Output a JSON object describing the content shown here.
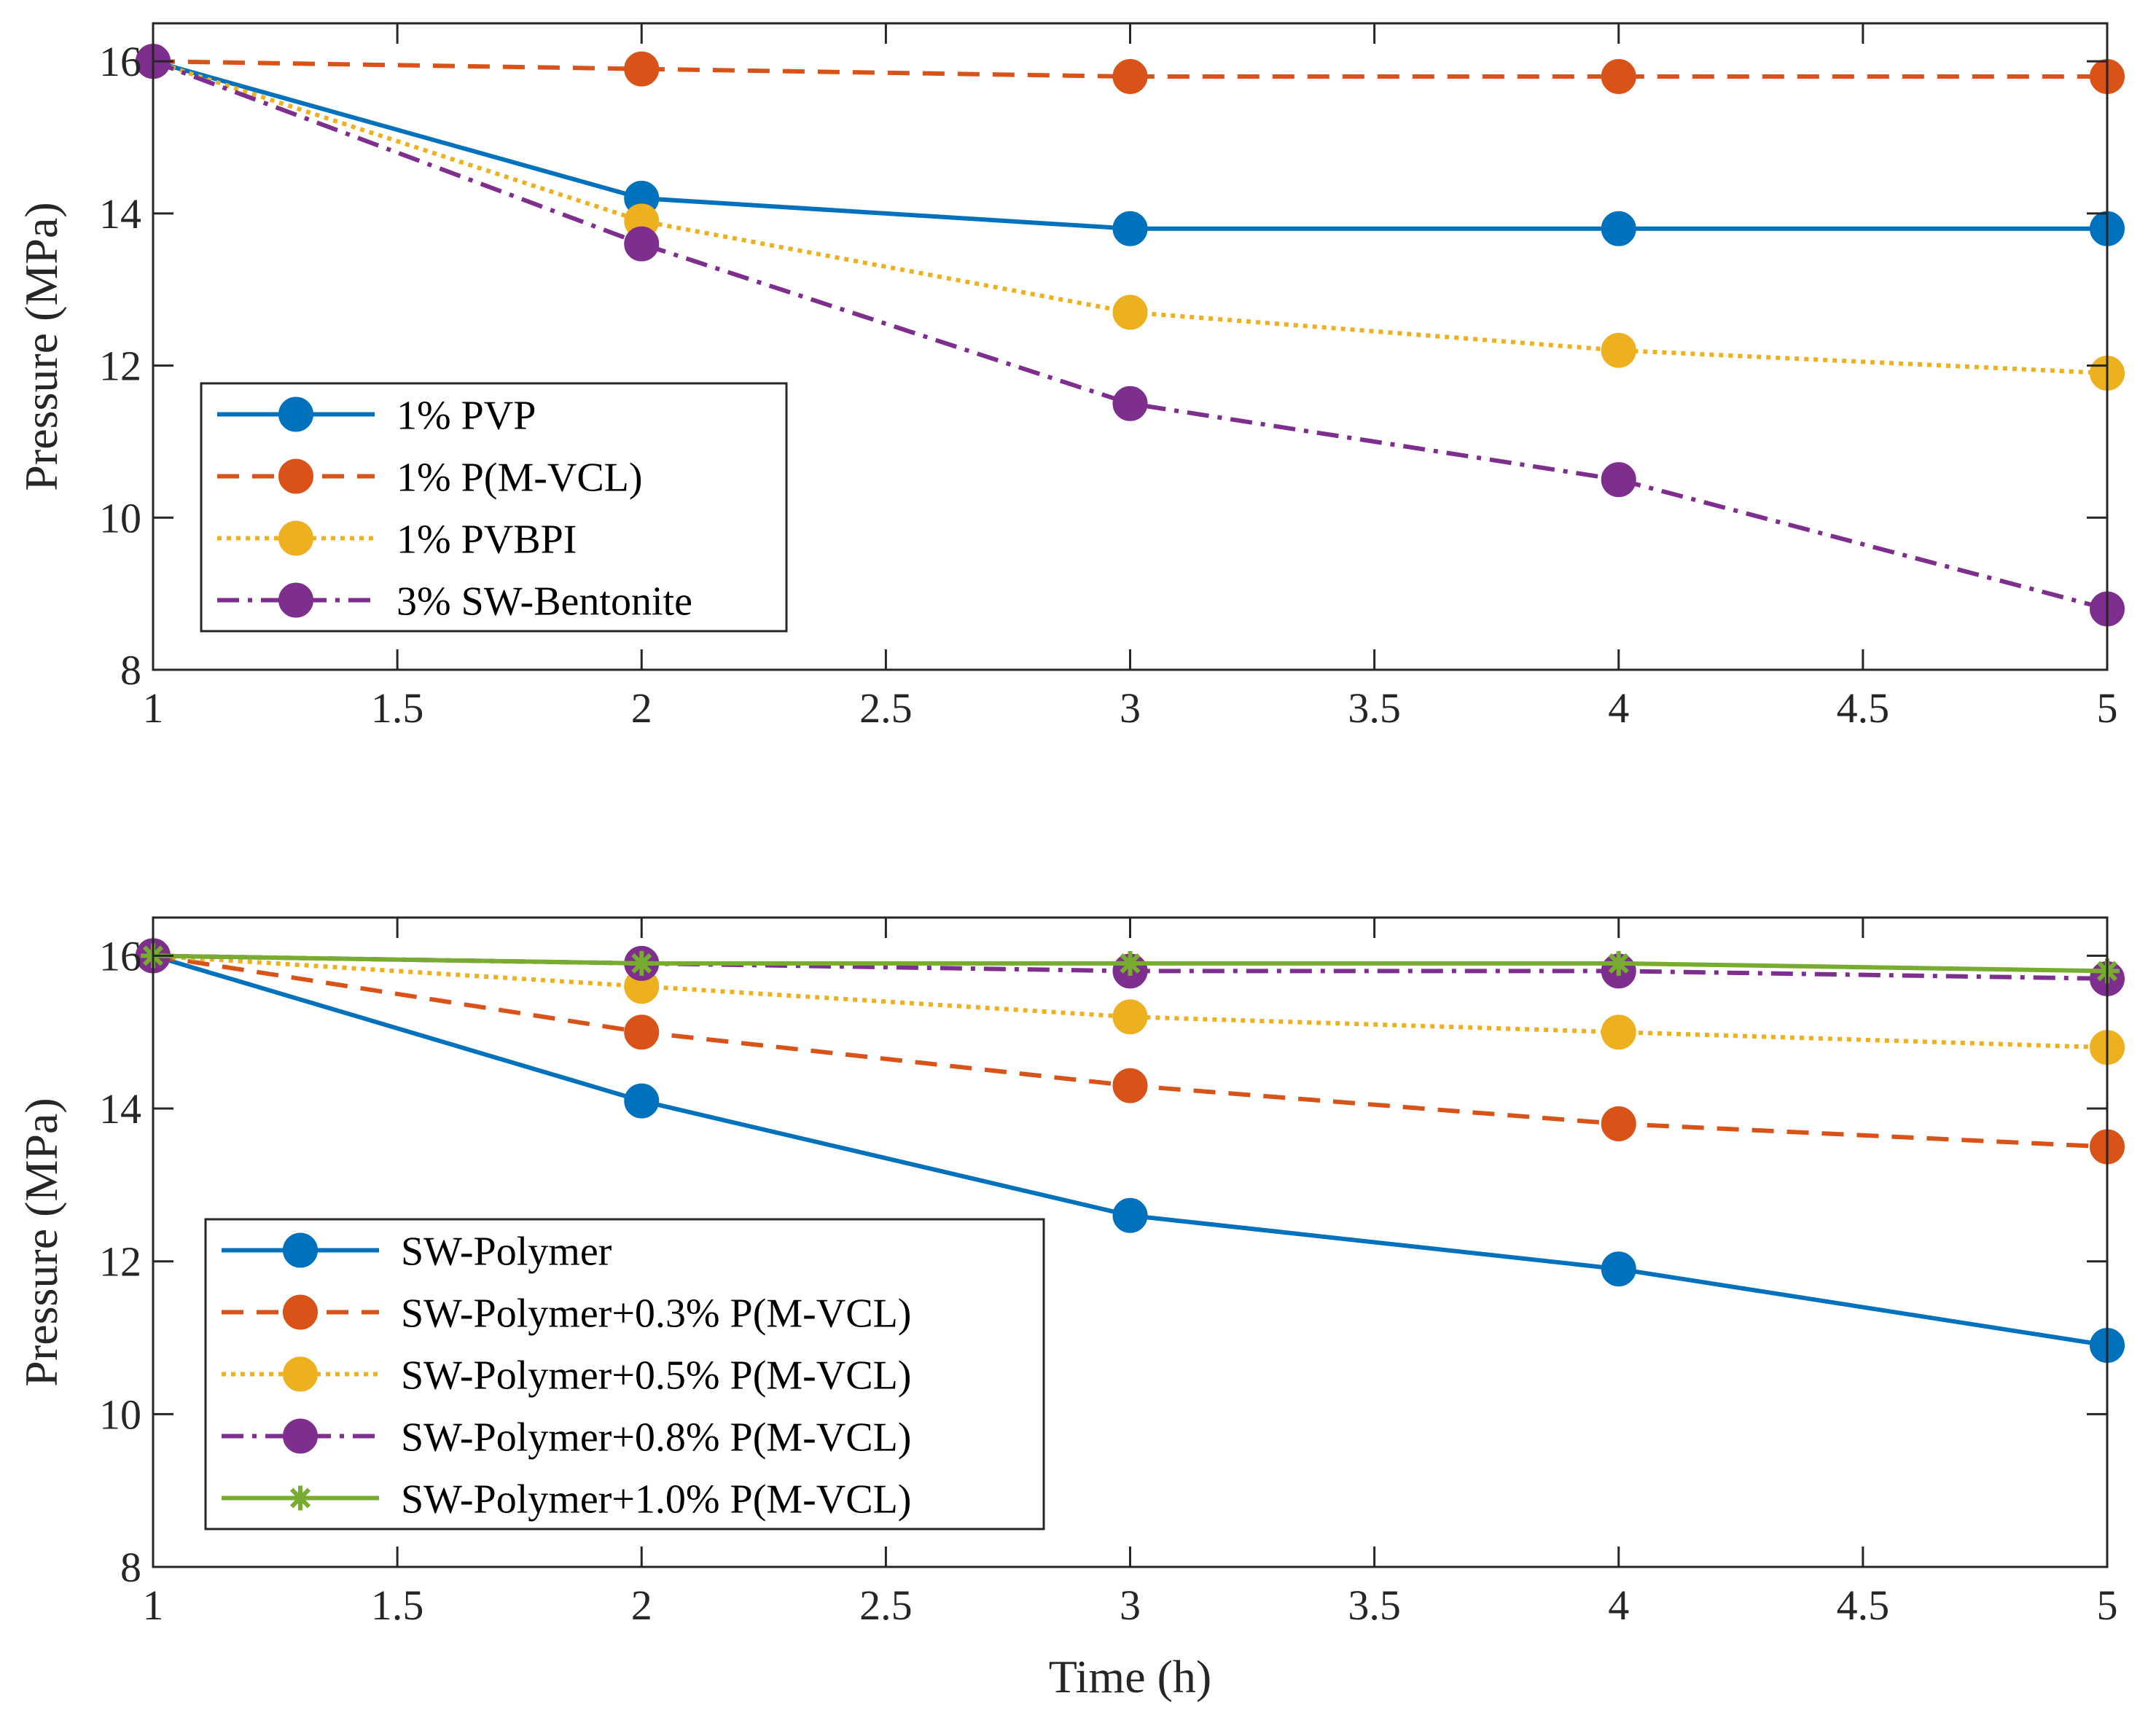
{
  "chart_data": [
    {
      "type": "line",
      "title": "",
      "xlabel": "",
      "ylabel": "Pressure (MPa)",
      "xlim": [
        1,
        5
      ],
      "ylim": [
        8,
        16.5
      ],
      "xticks": [
        "1",
        "1.5",
        "2",
        "2.5",
        "3",
        "3.5",
        "4",
        "4.5",
        "5"
      ],
      "yticks": [
        "8",
        "10",
        "12",
        "14",
        "16"
      ],
      "grid": false,
      "legend_position": "lower-left",
      "x": [
        1,
        2,
        3,
        4,
        5
      ],
      "series": [
        {
          "name": "1% PVP",
          "values": [
            16,
            14.2,
            13.8,
            13.8,
            13.8
          ],
          "color": "#0072BD",
          "dash": "solid",
          "marker": "circle"
        },
        {
          "name": "1% P(M-VCL)",
          "values": [
            16,
            15.9,
            15.8,
            15.8,
            15.8
          ],
          "color": "#D95319",
          "dash": "dashed",
          "marker": "circle"
        },
        {
          "name": "1% PVBPI",
          "values": [
            16,
            13.9,
            12.7,
            12.2,
            11.9
          ],
          "color": "#EDB120",
          "dash": "dotted",
          "marker": "circle"
        },
        {
          "name": "3% SW-Bentonite",
          "values": [
            16,
            13.6,
            11.5,
            10.5,
            8.8
          ],
          "color": "#7E2F8E",
          "dash": "dashdot",
          "marker": "circle"
        }
      ]
    },
    {
      "type": "line",
      "title": "",
      "xlabel": "Time (h)",
      "ylabel": "Pressure (MPa)",
      "xlim": [
        1,
        5
      ],
      "ylim": [
        8,
        16.5
      ],
      "xticks": [
        "1",
        "1.5",
        "2",
        "2.5",
        "3",
        "3.5",
        "4",
        "4.5",
        "5"
      ],
      "yticks": [
        "8",
        "10",
        "12",
        "14",
        "16"
      ],
      "grid": false,
      "legend_position": "lower-left",
      "x": [
        1,
        2,
        3,
        4,
        5
      ],
      "series": [
        {
          "name": "SW-Polymer",
          "values": [
            16,
            14.1,
            12.6,
            11.9,
            10.9
          ],
          "color": "#0072BD",
          "dash": "solid",
          "marker": "circle"
        },
        {
          "name": "SW-Polymer+0.3% P(M-VCL)",
          "values": [
            16,
            15.0,
            14.3,
            13.8,
            13.5
          ],
          "color": "#D95319",
          "dash": "dashed",
          "marker": "circle"
        },
        {
          "name": "SW-Polymer+0.5% P(M-VCL)",
          "values": [
            16,
            15.6,
            15.2,
            15.0,
            14.8
          ],
          "color": "#EDB120",
          "dash": "dotted",
          "marker": "circle"
        },
        {
          "name": "SW-Polymer+0.8% P(M-VCL)",
          "values": [
            16,
            15.9,
            15.8,
            15.8,
            15.7
          ],
          "color": "#7E2F8E",
          "dash": "dashdot",
          "marker": "circle"
        },
        {
          "name": "SW-Polymer+1.0% P(M-VCL)",
          "values": [
            16,
            15.9,
            15.9,
            15.9,
            15.8
          ],
          "color": "#77AC30",
          "dash": "solid",
          "marker": "asterisk"
        }
      ]
    }
  ]
}
